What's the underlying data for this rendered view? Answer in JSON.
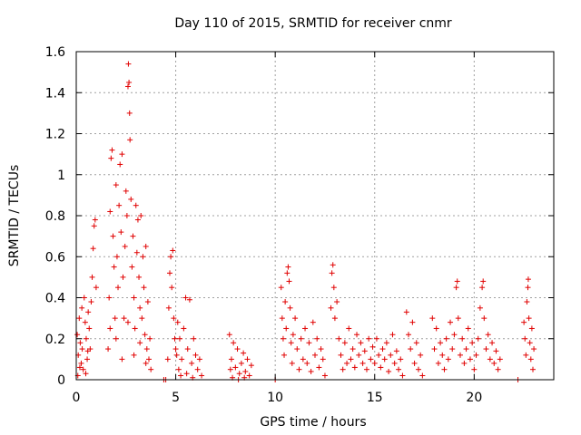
{
  "chart_data": {
    "type": "scatter",
    "title": "Day 110 of 2015, SRMTID for receiver cnmr",
    "xlabel": "GPS time / hours",
    "ylabel": "SRMTID / TECUs",
    "xlim": [
      0,
      24
    ],
    "ylim": [
      0,
      1.6
    ],
    "xticks": [
      0,
      5,
      10,
      15,
      20
    ],
    "xtick_labels": [
      "0",
      "5",
      "10",
      "15",
      "20"
    ],
    "yticks": [
      0,
      0.2,
      0.4,
      0.6,
      0.8,
      1.0,
      1.2,
      1.4,
      1.6
    ],
    "ytick_labels": [
      "0",
      "0.2",
      "0.4",
      "0.6",
      "0.8",
      "1",
      "1.2",
      "1.4",
      "1.6"
    ],
    "grid": true,
    "marker": "plus",
    "color": "#e00000",
    "series": [
      {
        "name": "SRMTID",
        "points": [
          [
            0.05,
            0.22
          ],
          [
            0.1,
            0.12
          ],
          [
            0.15,
            0.3
          ],
          [
            0.2,
            0.18
          ],
          [
            0.25,
            0.08
          ],
          [
            0.3,
            0.15
          ],
          [
            0.35,
            0.05
          ],
          [
            0.4,
            0.4
          ],
          [
            0.45,
            0.28
          ],
          [
            0.5,
            0.2
          ],
          [
            0.55,
            0.1
          ],
          [
            0.6,
            0.33
          ],
          [
            0.65,
            0.25
          ],
          [
            0.7,
            0.15
          ],
          [
            0.75,
            0.38
          ],
          [
            0.8,
            0.5
          ],
          [
            0.85,
            0.64
          ],
          [
            0.9,
            0.75
          ],
          [
            0.95,
            0.78
          ],
          [
            1.0,
            0.45
          ],
          [
            0.08,
            0.02
          ],
          [
            0.18,
            0.06
          ],
          [
            0.28,
            0.35
          ],
          [
            0.48,
            0.03
          ],
          [
            0.58,
            0.14
          ],
          [
            1.6,
            0.15
          ],
          [
            1.65,
            0.4
          ],
          [
            1.7,
            0.82
          ],
          [
            1.75,
            1.08
          ],
          [
            1.8,
            1.12
          ],
          [
            1.85,
            0.7
          ],
          [
            1.9,
            0.55
          ],
          [
            1.95,
            0.3
          ],
          [
            2.0,
            0.95
          ],
          [
            2.05,
            0.6
          ],
          [
            2.1,
            0.45
          ],
          [
            2.15,
            0.85
          ],
          [
            2.2,
            1.05
          ],
          [
            2.25,
            0.72
          ],
          [
            2.3,
            1.1
          ],
          [
            2.35,
            0.5
          ],
          [
            2.4,
            0.3
          ],
          [
            2.45,
            0.65
          ],
          [
            2.5,
            0.92
          ],
          [
            2.55,
            0.8
          ],
          [
            2.6,
            1.43
          ],
          [
            2.62,
            1.54
          ],
          [
            2.65,
            1.45
          ],
          [
            2.68,
            1.3
          ],
          [
            2.7,
            1.17
          ],
          [
            2.75,
            0.88
          ],
          [
            2.8,
            0.55
          ],
          [
            2.85,
            0.7
          ],
          [
            2.9,
            0.4
          ],
          [
            2.95,
            0.25
          ],
          [
            3.0,
            0.85
          ],
          [
            3.05,
            0.62
          ],
          [
            3.1,
            0.78
          ],
          [
            3.15,
            0.5
          ],
          [
            3.2,
            0.35
          ],
          [
            3.25,
            0.8
          ],
          [
            3.3,
            0.3
          ],
          [
            3.35,
            0.6
          ],
          [
            3.4,
            0.45
          ],
          [
            3.45,
            0.22
          ],
          [
            3.5,
            0.65
          ],
          [
            3.55,
            0.15
          ],
          [
            3.6,
            0.38
          ],
          [
            3.65,
            0.1
          ],
          [
            3.7,
            0.2
          ],
          [
            3.75,
            0.05
          ],
          [
            1.7,
            0.25
          ],
          [
            2.0,
            0.2
          ],
          [
            2.3,
            0.1
          ],
          [
            2.6,
            0.28
          ],
          [
            2.9,
            0.12
          ],
          [
            3.2,
            0.18
          ],
          [
            3.5,
            0.08
          ],
          [
            4.4,
            0.0
          ],
          [
            4.5,
            0.0
          ],
          [
            4.6,
            0.1
          ],
          [
            4.65,
            0.35
          ],
          [
            4.7,
            0.52
          ],
          [
            4.75,
            0.6
          ],
          [
            4.8,
            0.45
          ],
          [
            4.85,
            0.63
          ],
          [
            4.9,
            0.3
          ],
          [
            4.95,
            0.2
          ],
          [
            5.0,
            0.15
          ],
          [
            5.05,
            0.12
          ],
          [
            5.1,
            0.28
          ],
          [
            5.15,
            0.05
          ],
          [
            5.2,
            0.2
          ],
          [
            5.3,
            0.1
          ],
          [
            5.4,
            0.25
          ],
          [
            5.5,
            0.4
          ],
          [
            5.6,
            0.15
          ],
          [
            5.7,
            0.39
          ],
          [
            5.8,
            0.08
          ],
          [
            5.9,
            0.2
          ],
          [
            6.0,
            0.12
          ],
          [
            6.1,
            0.05
          ],
          [
            6.2,
            0.1
          ],
          [
            6.3,
            0.02
          ],
          [
            5.25,
            0.02
          ],
          [
            5.55,
            0.03
          ],
          [
            5.85,
            0.01
          ],
          [
            7.7,
            0.22
          ],
          [
            7.75,
            0.05
          ],
          [
            7.8,
            0.1
          ],
          [
            7.9,
            0.18
          ],
          [
            8.0,
            0.06
          ],
          [
            8.1,
            0.15
          ],
          [
            8.2,
            0.03
          ],
          [
            8.3,
            0.08
          ],
          [
            8.4,
            0.13
          ],
          [
            8.5,
            0.04
          ],
          [
            8.6,
            0.1
          ],
          [
            8.7,
            0.02
          ],
          [
            8.8,
            0.07
          ],
          [
            7.85,
            0.01
          ],
          [
            8.15,
            0.0
          ],
          [
            8.45,
            0.01
          ],
          [
            10.0,
            0.0
          ],
          [
            10.3,
            0.45
          ],
          [
            10.35,
            0.3
          ],
          [
            10.4,
            0.2
          ],
          [
            10.45,
            0.12
          ],
          [
            10.5,
            0.38
          ],
          [
            10.55,
            0.25
          ],
          [
            10.6,
            0.52
          ],
          [
            10.65,
            0.55
          ],
          [
            10.7,
            0.48
          ],
          [
            10.75,
            0.35
          ],
          [
            10.8,
            0.18
          ],
          [
            10.85,
            0.08
          ],
          [
            10.9,
            0.22
          ],
          [
            11.0,
            0.3
          ],
          [
            11.1,
            0.15
          ],
          [
            11.2,
            0.05
          ],
          [
            11.3,
            0.2
          ],
          [
            11.4,
            0.1
          ],
          [
            11.5,
            0.25
          ],
          [
            11.6,
            0.08
          ],
          [
            11.7,
            0.18
          ],
          [
            11.8,
            0.04
          ],
          [
            11.9,
            0.28
          ],
          [
            12.0,
            0.12
          ],
          [
            12.1,
            0.2
          ],
          [
            12.2,
            0.06
          ],
          [
            12.3,
            0.15
          ],
          [
            12.4,
            0.1
          ],
          [
            12.5,
            0.02
          ],
          [
            12.8,
            0.35
          ],
          [
            12.85,
            0.52
          ],
          [
            12.9,
            0.56
          ],
          [
            12.95,
            0.45
          ],
          [
            13.0,
            0.3
          ],
          [
            13.1,
            0.38
          ],
          [
            13.2,
            0.2
          ],
          [
            13.3,
            0.12
          ],
          [
            13.4,
            0.05
          ],
          [
            13.5,
            0.18
          ],
          [
            13.6,
            0.08
          ],
          [
            13.7,
            0.25
          ],
          [
            13.8,
            0.1
          ],
          [
            13.9,
            0.15
          ],
          [
            14.0,
            0.06
          ],
          [
            14.1,
            0.22
          ],
          [
            14.2,
            0.12
          ],
          [
            14.3,
            0.18
          ],
          [
            14.4,
            0.08
          ],
          [
            14.5,
            0.14
          ],
          [
            14.6,
            0.05
          ],
          [
            14.7,
            0.2
          ],
          [
            14.8,
            0.1
          ],
          [
            14.9,
            0.16
          ],
          [
            15.0,
            0.08
          ],
          [
            15.1,
            0.2
          ],
          [
            15.2,
            0.12
          ],
          [
            15.3,
            0.06
          ],
          [
            15.4,
            0.15
          ],
          [
            15.5,
            0.1
          ],
          [
            15.6,
            0.18
          ],
          [
            15.7,
            0.04
          ],
          [
            15.8,
            0.12
          ],
          [
            15.9,
            0.22
          ],
          [
            16.0,
            0.08
          ],
          [
            16.1,
            0.14
          ],
          [
            16.2,
            0.05
          ],
          [
            16.3,
            0.1
          ],
          [
            16.4,
            0.02
          ],
          [
            16.6,
            0.33
          ],
          [
            16.7,
            0.22
          ],
          [
            16.8,
            0.15
          ],
          [
            16.9,
            0.28
          ],
          [
            17.0,
            0.08
          ],
          [
            17.1,
            0.18
          ],
          [
            17.2,
            0.05
          ],
          [
            17.3,
            0.12
          ],
          [
            17.4,
            0.02
          ],
          [
            17.9,
            0.3
          ],
          [
            18.0,
            0.15
          ],
          [
            18.1,
            0.25
          ],
          [
            18.2,
            0.08
          ],
          [
            18.3,
            0.18
          ],
          [
            18.4,
            0.12
          ],
          [
            18.5,
            0.05
          ],
          [
            18.6,
            0.2
          ],
          [
            18.7,
            0.1
          ],
          [
            18.8,
            0.28
          ],
          [
            18.9,
            0.15
          ],
          [
            19.0,
            0.22
          ],
          [
            19.1,
            0.45
          ],
          [
            19.15,
            0.48
          ],
          [
            19.2,
            0.3
          ],
          [
            19.3,
            0.12
          ],
          [
            19.4,
            0.2
          ],
          [
            19.5,
            0.08
          ],
          [
            19.6,
            0.15
          ],
          [
            19.7,
            0.25
          ],
          [
            19.8,
            0.1
          ],
          [
            19.9,
            0.18
          ],
          [
            20.0,
            0.05
          ],
          [
            20.1,
            0.12
          ],
          [
            20.2,
            0.2
          ],
          [
            20.3,
            0.35
          ],
          [
            20.4,
            0.45
          ],
          [
            20.45,
            0.48
          ],
          [
            20.5,
            0.3
          ],
          [
            20.6,
            0.15
          ],
          [
            20.7,
            0.22
          ],
          [
            20.8,
            0.1
          ],
          [
            20.9,
            0.18
          ],
          [
            21.0,
            0.08
          ],
          [
            21.1,
            0.14
          ],
          [
            21.2,
            0.05
          ],
          [
            21.3,
            0.1
          ],
          [
            22.2,
            0.0
          ],
          [
            22.5,
            0.28
          ],
          [
            22.55,
            0.2
          ],
          [
            22.6,
            0.12
          ],
          [
            22.65,
            0.38
          ],
          [
            22.7,
            0.45
          ],
          [
            22.72,
            0.49
          ],
          [
            22.75,
            0.3
          ],
          [
            22.8,
            0.18
          ],
          [
            22.85,
            0.1
          ],
          [
            22.9,
            0.25
          ],
          [
            22.95,
            0.05
          ],
          [
            23.0,
            0.15
          ]
        ]
      }
    ]
  }
}
